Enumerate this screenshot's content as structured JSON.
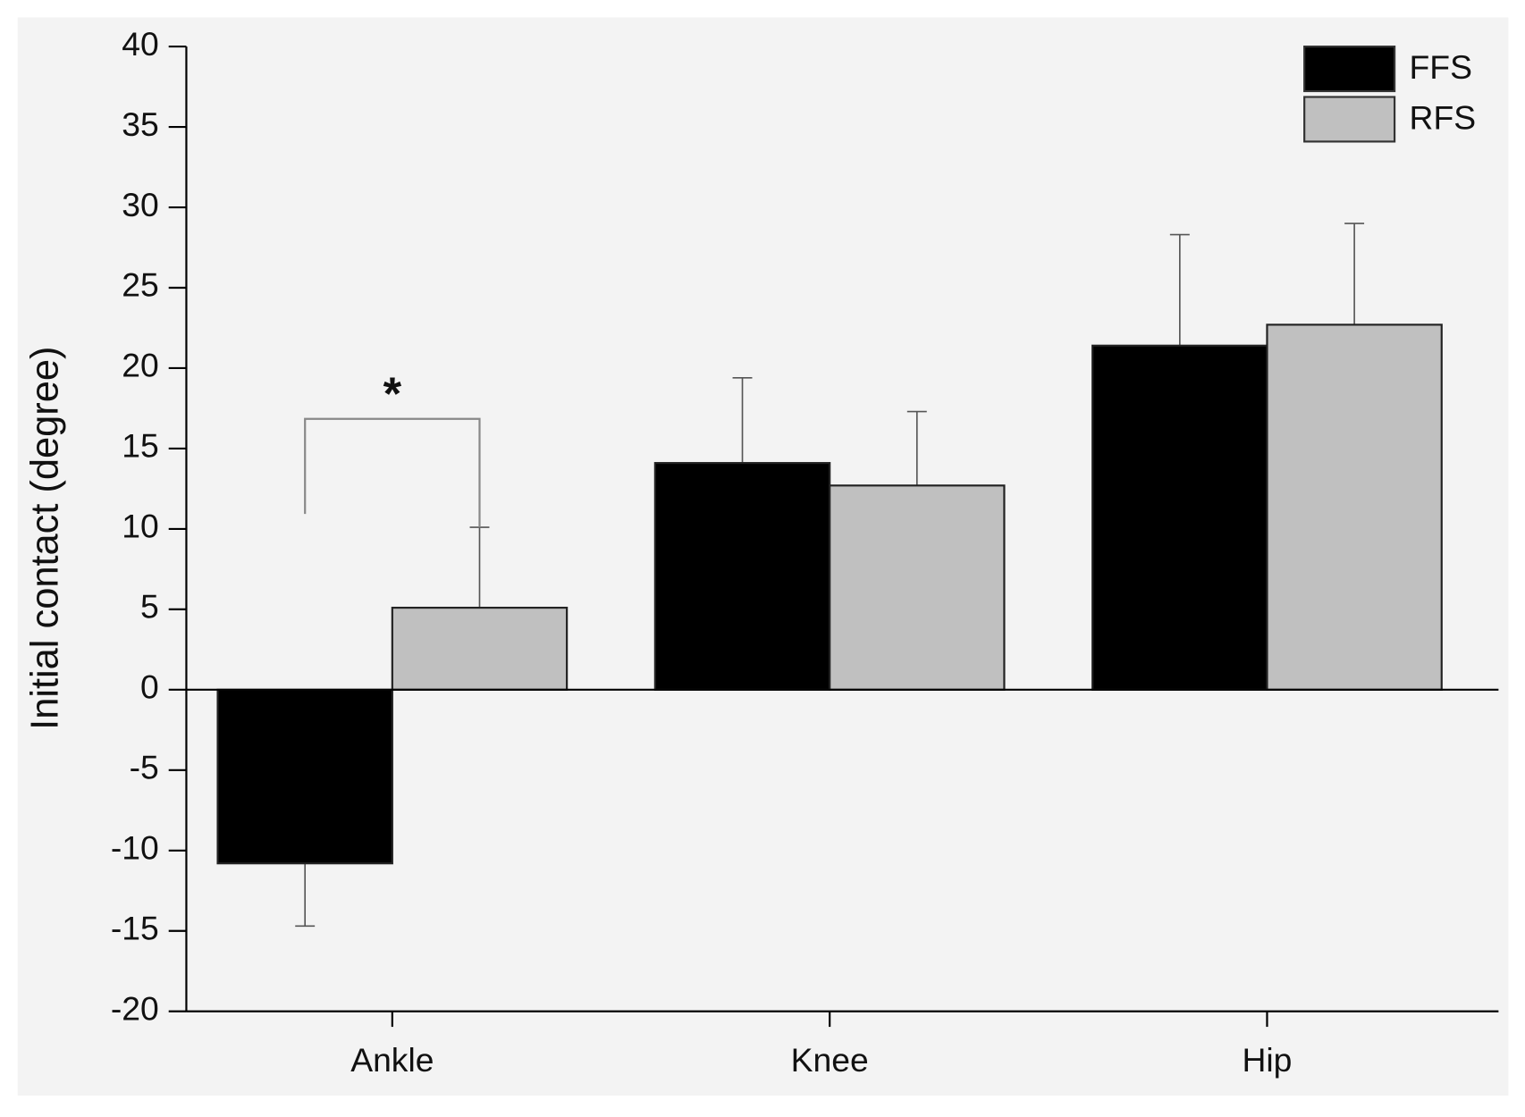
{
  "chart_data": {
    "type": "bar",
    "y_label": "Initial contact (degree)",
    "categories": [
      "Ankle",
      "Knee",
      "Hip"
    ],
    "series": [
      {
        "name": "FFS",
        "color": "#000000",
        "values": [
          -10.8,
          14.1,
          21.4
        ],
        "errors": [
          3.9,
          5.3,
          6.9
        ]
      },
      {
        "name": "RFS",
        "color": "#c0c0c0",
        "values": [
          5.1,
          12.7,
          22.7
        ],
        "errors": [
          5.0,
          4.6,
          6.3
        ]
      }
    ],
    "ylim": [
      -20,
      40
    ],
    "yticks": [
      -20,
      -15,
      -10,
      -5,
      0,
      5,
      10,
      15,
      20,
      25,
      30,
      35,
      40
    ],
    "annotation": "*",
    "legend": "top-right"
  }
}
